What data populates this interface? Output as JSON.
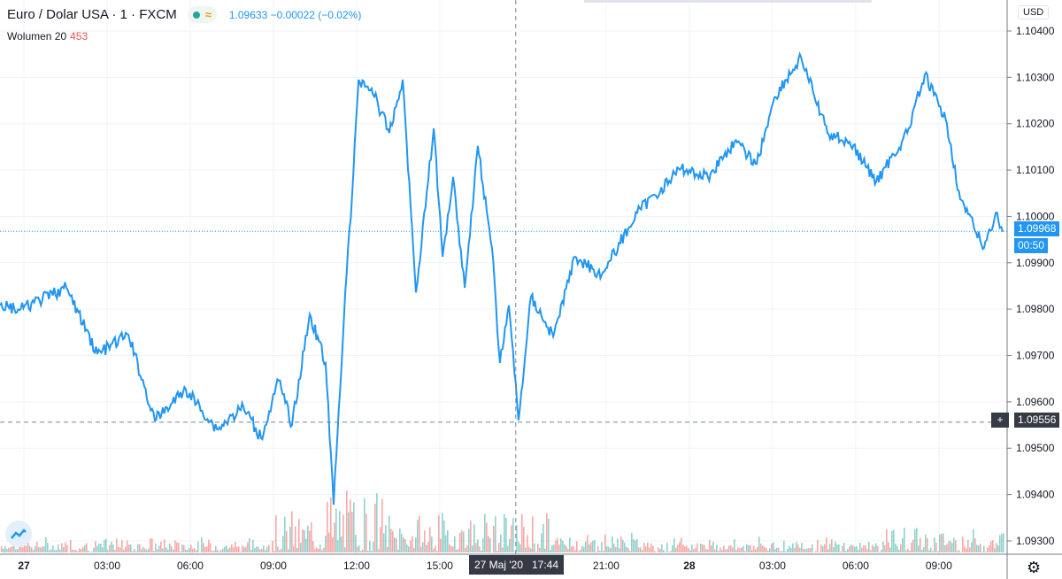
{
  "header": {
    "symbol": "Euro / Dolar USA · 1 · FXCM",
    "quote": "1.09633 −0.00022 (−0.02%)",
    "market_status_icon": "market-open-dot",
    "delay_icon": "approx-icon"
  },
  "volume_legend": {
    "label": "Wolumen 20",
    "value": "453"
  },
  "price_axis": {
    "currency": "USD",
    "last_price": "1.09968",
    "countdown": "00:50",
    "crosshair_price": "1.09556"
  },
  "time_axis": {
    "crosshair_label": "27 Maj '20   17:44"
  },
  "colors": {
    "line": "#2196f3",
    "up": "#26a69a",
    "down": "#ef5350"
  },
  "chart_data": {
    "type": "line",
    "title": "Euro / Dolar USA · 1 · FXCM",
    "xlabel": "",
    "ylabel": "USD",
    "ylim": [
      1.0927,
      1.1043
    ],
    "xlim_hours": [
      -0.86,
      35.5
    ],
    "y_ticks": [
      "1.10400",
      "1.10300",
      "1.10200",
      "1.10100",
      "1.10000",
      "1.09900",
      "1.09800",
      "1.09700",
      "1.09600",
      "1.09500",
      "1.09400",
      "1.09300"
    ],
    "x_ticks": [
      {
        "h": 0,
        "label": "27"
      },
      {
        "h": 3,
        "label": "03:00"
      },
      {
        "h": 6,
        "label": "06:00"
      },
      {
        "h": 9,
        "label": "09:00"
      },
      {
        "h": 12,
        "label": "12:00"
      },
      {
        "h": 15,
        "label": "15:00"
      },
      {
        "h": 21,
        "label": "21:00"
      },
      {
        "h": 24,
        "label": "28"
      },
      {
        "h": 27,
        "label": "03:00"
      },
      {
        "h": 30,
        "label": "06:00"
      },
      {
        "h": 33,
        "label": "09:00"
      }
    ],
    "crosshair": {
      "h": 17.74,
      "price": 1.09556
    },
    "last_price": 1.09968,
    "series": [
      {
        "name": "EURUSD",
        "points": [
          [
            -0.86,
            1.09808
          ],
          [
            -0.16,
            1.09798
          ],
          [
            1.53,
            1.09846
          ],
          [
            2.65,
            1.09703
          ],
          [
            3.77,
            1.09745
          ],
          [
            4.72,
            1.0956
          ],
          [
            5.84,
            1.09627
          ],
          [
            6.96,
            1.09541
          ],
          [
            7.92,
            1.09589
          ],
          [
            8.55,
            1.09522
          ],
          [
            9.19,
            1.09646
          ],
          [
            9.67,
            1.0955
          ],
          [
            10.31,
            1.09789
          ],
          [
            10.88,
            1.09684
          ],
          [
            11.17,
            1.09378
          ],
          [
            11.59,
            1.09836
          ],
          [
            11.84,
            1.10047
          ],
          [
            12.07,
            1.10295
          ],
          [
            12.54,
            1.10276
          ],
          [
            13.18,
            1.1018
          ],
          [
            13.66,
            1.10295
          ],
          [
            14.14,
            1.09836
          ],
          [
            14.78,
            1.1019
          ],
          [
            15.1,
            1.09913
          ],
          [
            15.48,
            1.10085
          ],
          [
            15.9,
            1.09846
          ],
          [
            16.37,
            1.10152
          ],
          [
            16.88,
            1.09932
          ],
          [
            17.17,
            1.09684
          ],
          [
            17.49,
            1.09808
          ],
          [
            17.84,
            1.0956
          ],
          [
            18.29,
            1.09827
          ],
          [
            19.09,
            1.09741
          ],
          [
            19.88,
            1.09913
          ],
          [
            20.84,
            1.09874
          ],
          [
            22.12,
            1.10008
          ],
          [
            23.71,
            1.10104
          ],
          [
            24.67,
            1.10085
          ],
          [
            25.63,
            1.10161
          ],
          [
            26.43,
            1.10113
          ],
          [
            27.07,
            1.10257
          ],
          [
            28.03,
            1.10343
          ],
          [
            28.98,
            1.1018
          ],
          [
            29.78,
            1.10161
          ],
          [
            30.74,
            1.10075
          ],
          [
            31.86,
            1.1018
          ],
          [
            32.49,
            1.10305
          ],
          [
            33.29,
            1.102
          ],
          [
            33.77,
            1.10037
          ],
          [
            34.63,
            1.09932
          ],
          [
            35.05,
            1.10008
          ],
          [
            35.3,
            1.09967
          ]
        ]
      }
    ]
  }
}
